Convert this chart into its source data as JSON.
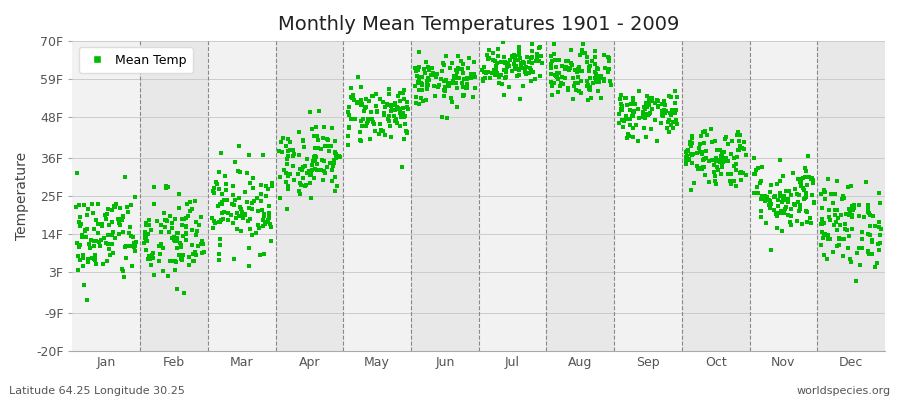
{
  "title": "Monthly Mean Temperatures 1901 - 2009",
  "ylabel": "Temperature",
  "xlabel_labels": [
    "Jan",
    "Feb",
    "Mar",
    "Apr",
    "May",
    "Jun",
    "Jul",
    "Aug",
    "Sep",
    "Oct",
    "Nov",
    "Dec"
  ],
  "ytick_labels": [
    "70F",
    "59F",
    "48F",
    "36F",
    "25F",
    "14F",
    "3F",
    "-9F",
    "-20F"
  ],
  "ytick_values": [
    70,
    59,
    48,
    36,
    25,
    14,
    3,
    -9,
    -20
  ],
  "ylim": [
    -20,
    70
  ],
  "dot_color": "#00bb00",
  "dot_size": 5,
  "background_color": "#ffffff",
  "plot_bg_stripe_light": "#f2f2f2",
  "plot_bg_stripe_dark": "#e8e8e8",
  "footer_left": "Latitude 64.25 Longitude 30.25",
  "footer_right": "worldspecies.org",
  "legend_label": "Mean Temp",
  "monthly_means_C": [
    -10.5,
    -11.0,
    -5.5,
    2.0,
    9.5,
    14.5,
    17.5,
    15.5,
    9.5,
    2.5,
    -4.0,
    -8.5
  ],
  "monthly_std_C": [
    3.8,
    4.0,
    3.5,
    3.0,
    2.5,
    2.0,
    2.0,
    2.0,
    2.0,
    2.5,
    3.0,
    3.5
  ],
  "n_years": 109
}
